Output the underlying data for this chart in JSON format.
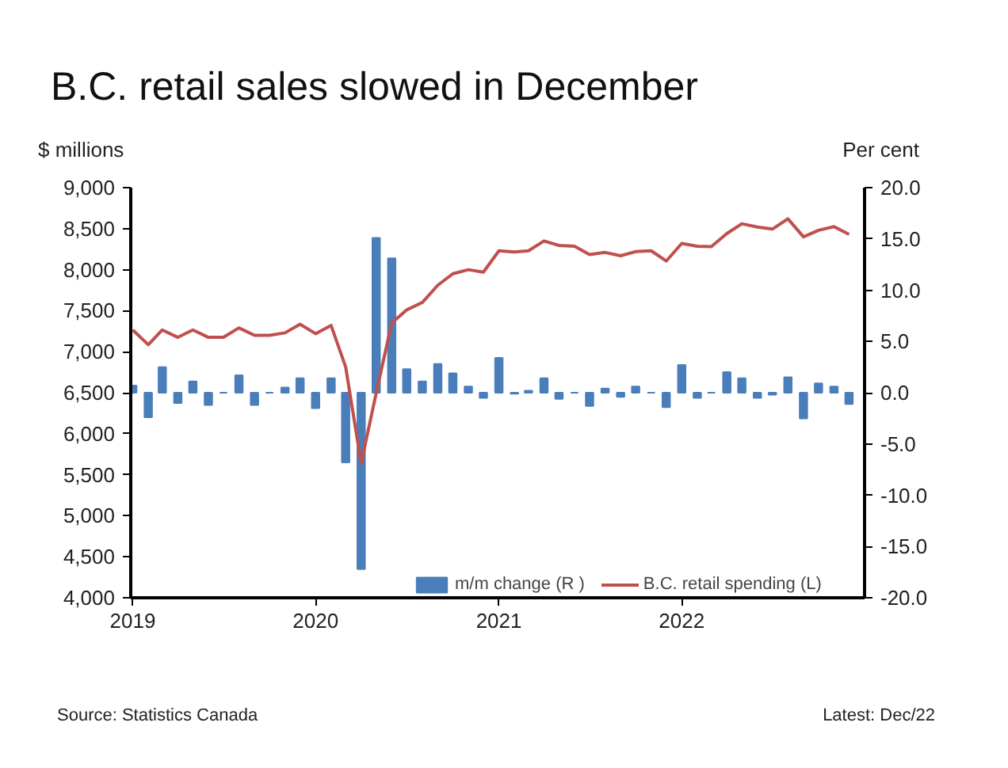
{
  "chart_data": {
    "type": "line",
    "title": "B.C. retail sales slowed in December",
    "ylabel": "$ millions",
    "y2label": "Per cent",
    "x": [
      "2019-01",
      "2019-02",
      "2019-03",
      "2019-04",
      "2019-05",
      "2019-06",
      "2019-07",
      "2019-08",
      "2019-09",
      "2019-10",
      "2019-11",
      "2019-12",
      "2020-01",
      "2020-02",
      "2020-03",
      "2020-04",
      "2020-05",
      "2020-06",
      "2020-07",
      "2020-08",
      "2020-09",
      "2020-10",
      "2020-11",
      "2020-12",
      "2021-01",
      "2021-02",
      "2021-03",
      "2021-04",
      "2021-05",
      "2021-06",
      "2021-07",
      "2021-08",
      "2021-09",
      "2021-10",
      "2021-11",
      "2021-12",
      "2022-01",
      "2022-02",
      "2022-03",
      "2022-04",
      "2022-05",
      "2022-06",
      "2022-07",
      "2022-08",
      "2022-09",
      "2022-10",
      "2022-11",
      "2022-12"
    ],
    "series": [
      {
        "name": "m/m change (R )",
        "type": "bar",
        "axis": "y2",
        "color": "#4a7ebb",
        "values": [
          0.7,
          -2.4,
          2.5,
          -1.0,
          1.1,
          -1.2,
          0.0,
          1.7,
          -1.2,
          0.0,
          0.5,
          1.4,
          -1.5,
          1.4,
          -6.8,
          -17.2,
          15.1,
          13.1,
          2.3,
          1.1,
          2.8,
          1.9,
          0.6,
          -0.5,
          3.4,
          -0.1,
          0.2,
          1.4,
          -0.6,
          0.0,
          -1.3,
          0.4,
          -0.4,
          0.6,
          0.0,
          -1.4,
          2.7,
          -0.5,
          0.0,
          2.0,
          1.4,
          -0.5,
          -0.2,
          1.5,
          -2.5,
          0.9,
          0.6,
          -1.1
        ]
      },
      {
        "name": "B.C. retail spending (L)",
        "type": "line",
        "color": "#c0504d",
        "values": [
          7265,
          7085,
          7265,
          7175,
          7265,
          7175,
          7175,
          7290,
          7200,
          7200,
          7230,
          7335,
          7220,
          7320,
          6815,
          5640,
          6495,
          7350,
          7510,
          7600,
          7810,
          7950,
          8000,
          7970,
          8230,
          8215,
          8230,
          8350,
          8295,
          8285,
          8185,
          8210,
          8170,
          8220,
          8230,
          8105,
          8320,
          8285,
          8280,
          8440,
          8560,
          8520,
          8495,
          8620,
          8400,
          8480,
          8525,
          8430
        ]
      }
    ],
    "xlim": [
      "2018-12-28",
      "2023-01-01"
    ],
    "xticks": [
      "2019",
      "2020",
      "2021",
      "2022"
    ],
    "ylim": [
      4000,
      9000
    ],
    "yticks": [
      {
        "value": 4000,
        "label": "4,000"
      },
      {
        "value": 4500,
        "label": "4,500"
      },
      {
        "value": 5000,
        "label": "5,000"
      },
      {
        "value": 5500,
        "label": "5,500"
      },
      {
        "value": 6000,
        "label": "6,000"
      },
      {
        "value": 6500,
        "label": "6,500"
      },
      {
        "value": 7000,
        "label": "7,000"
      },
      {
        "value": 7500,
        "label": "7,500"
      },
      {
        "value": 8000,
        "label": "8,000"
      },
      {
        "value": 8500,
        "label": "8,500"
      },
      {
        "value": 9000,
        "label": "9,000"
      }
    ],
    "y2lim": [
      -20,
      20
    ],
    "y2ticks": [
      {
        "value": -20,
        "label": "-20.0"
      },
      {
        "value": -15,
        "label": "-15.0"
      },
      {
        "value": -10,
        "label": "-10.0"
      },
      {
        "value": -5,
        "label": "-5.0"
      },
      {
        "value": 0,
        "label": "0.0"
      },
      {
        "value": 5,
        "label": "5.0"
      },
      {
        "value": 10,
        "label": "10.0"
      },
      {
        "value": 15,
        "label": "15.0"
      },
      {
        "value": 20,
        "label": "20.0"
      }
    ],
    "annotations": [
      "Source: Statistics Canada",
      "Latest: Dec/22"
    ],
    "legend": "bottom",
    "grid": false
  }
}
